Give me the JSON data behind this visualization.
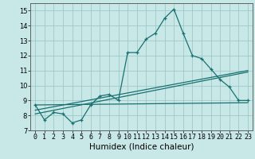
{
  "xlabel": "Humidex (Indice chaleur)",
  "ylabel": "",
  "bg_color": "#c8e8e8",
  "grid_color": "#a0c8c8",
  "line_color": "#1a7070",
  "xlim": [
    -0.5,
    23.5
  ],
  "ylim": [
    7,
    15.5
  ],
  "xticks": [
    0,
    1,
    2,
    3,
    4,
    5,
    6,
    7,
    8,
    9,
    10,
    11,
    12,
    13,
    14,
    15,
    16,
    17,
    18,
    19,
    20,
    21,
    22,
    23
  ],
  "yticks": [
    7,
    8,
    9,
    10,
    11,
    12,
    13,
    14,
    15
  ],
  "main_x": [
    0,
    1,
    2,
    3,
    4,
    5,
    6,
    7,
    8,
    9,
    10,
    11,
    12,
    13,
    14,
    15,
    16,
    17,
    18,
    19,
    20,
    21,
    22,
    23
  ],
  "main_y": [
    8.7,
    7.7,
    8.2,
    8.1,
    7.5,
    7.7,
    8.7,
    9.3,
    9.4,
    9.0,
    12.2,
    12.2,
    13.1,
    13.5,
    14.5,
    15.1,
    13.5,
    12.0,
    11.8,
    11.1,
    10.4,
    9.9,
    9.0,
    9.0
  ],
  "line1_x": [
    0,
    23
  ],
  "line1_y": [
    8.7,
    8.85
  ],
  "line2_x": [
    0,
    23
  ],
  "line2_y": [
    8.1,
    10.9
  ],
  "line3_x": [
    0,
    23
  ],
  "line3_y": [
    8.35,
    11.0
  ],
  "tick_fontsize": 6,
  "label_fontsize": 7.5
}
